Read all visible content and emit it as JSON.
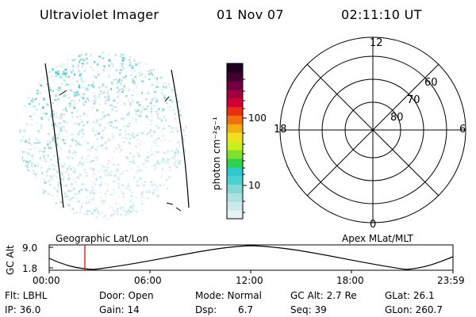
{
  "header": {
    "title": "Ultraviolet Imager",
    "date": "01 Nov 07",
    "time": "02:11:10 UT"
  },
  "colorbar": {
    "label": "photon cm⁻²s⁻¹",
    "ticks": [
      "100",
      "10"
    ],
    "colors": [
      "#e6f2f2",
      "#cde9e9",
      "#aee0e0",
      "#86d6d6",
      "#4cd0d0",
      "#2ec9d0",
      "#30d050",
      "#7ee030",
      "#c8f020",
      "#f0e020",
      "#f0b010",
      "#f07010",
      "#e83010",
      "#d00030",
      "#a00040",
      "#700040",
      "#400030",
      "#200020"
    ]
  },
  "polar": {
    "mlt_labels": {
      "top": "12",
      "bottom": "0",
      "left": "18",
      "right": "6"
    },
    "lat_labels": [
      "60",
      "70",
      "80"
    ]
  },
  "strip": {
    "left_label": "Geographic Lat/Lon",
    "right_label": "Apex MLat/MLT",
    "axis_title": "GC Alt",
    "y_ticks": [
      "9.0",
      "1.8"
    ],
    "x_ticks": [
      "00:00",
      "06:00",
      "12:00",
      "18:00",
      "23:59"
    ],
    "marker_color": "#ff0000"
  },
  "footer": {
    "row1": [
      "Flt: LBHL",
      "Door: Open",
      "Mode: Normal",
      "GC Alt: 2.7 Re",
      "GLat: 26.1"
    ],
    "row2": [
      "IP: 36.0",
      "Gain: 14",
      "Dsp:",
      "6.7",
      "Seq: 39",
      "GLon: 260.7"
    ]
  }
}
